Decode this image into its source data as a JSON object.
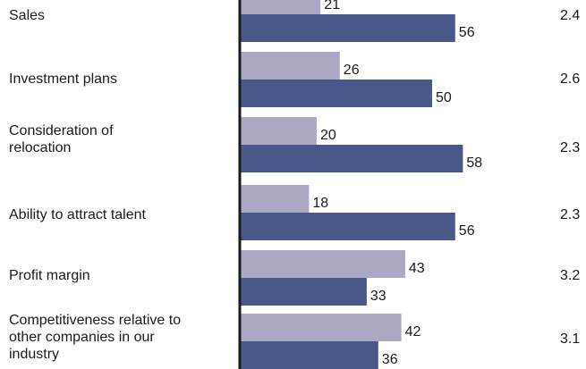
{
  "colors": {
    "light_bar": "#aba8c4",
    "dark_bar": "#4a5889",
    "axis": "#1a1a1a"
  },
  "chart_data": {
    "type": "bar",
    "orientation": "horizontal",
    "categories": [
      "Sales",
      "Investment plans",
      "Consideration of relocation",
      "Ability to attract talent",
      "Profit margin",
      "Competitiveness relative to other companies in our industry"
    ],
    "series": [
      {
        "values": [
          21,
          26,
          20,
          18,
          43,
          42
        ]
      },
      {
        "values": [
          56,
          50,
          58,
          56,
          33,
          36
        ]
      }
    ],
    "right_column_values": [
      "2.4",
      "2.6",
      "2.3",
      "2.3",
      "3.2",
      "3.1"
    ],
    "xlim": [
      0,
      100
    ],
    "grid": false,
    "legend": "none"
  }
}
